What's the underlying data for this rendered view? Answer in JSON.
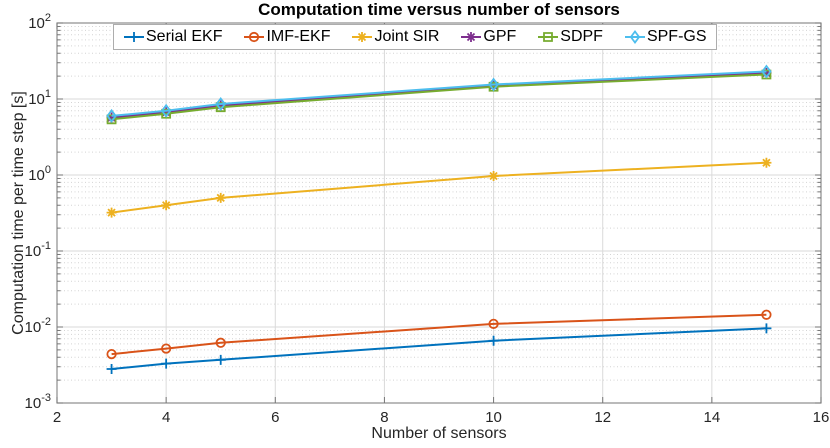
{
  "figure": {
    "title": "Computation time versus number of sensors",
    "xlabel": "Number of sensors",
    "ylabel": "Computation time per time step [s]"
  },
  "chart_data": {
    "type": "line",
    "x_scale": "linear",
    "y_scale": "log",
    "x": [
      3,
      4,
      5,
      10,
      15
    ],
    "series": [
      {
        "name": "Serial EKF",
        "color": "#0072BD",
        "marker": "plus",
        "values": [
          0.0028,
          0.0033,
          0.0037,
          0.0066,
          0.0096
        ]
      },
      {
        "name": "IMF-EKF",
        "color": "#D95319",
        "marker": "circle",
        "values": [
          0.0044,
          0.0052,
          0.0062,
          0.011,
          0.0145
        ]
      },
      {
        "name": "Joint SIR",
        "color": "#EDB120",
        "marker": "asterisk",
        "values": [
          0.32,
          0.4,
          0.5,
          0.97,
          1.45
        ]
      },
      {
        "name": "GPF",
        "color": "#7E2F8E",
        "marker": "asterisk",
        "values": [
          5.7,
          6.7,
          8.2,
          15.0,
          22.0
        ]
      },
      {
        "name": "SDPF",
        "color": "#77AC30",
        "marker": "square",
        "values": [
          5.4,
          6.4,
          7.8,
          14.5,
          21.0
        ]
      },
      {
        "name": "SPF-GS",
        "color": "#4DBEEE",
        "marker": "diamond",
        "values": [
          6.0,
          7.0,
          8.6,
          15.5,
          23.0
        ]
      }
    ],
    "title": "Computation time versus number of sensors",
    "xlabel": "Number of sensors",
    "ylabel": "Computation time per time step [s]",
    "xlim": [
      2,
      16
    ],
    "xticks": [
      2,
      4,
      6,
      8,
      10,
      12,
      14,
      16
    ],
    "ylim_exp": [
      -3,
      2
    ],
    "ytick_exponents": [
      2,
      1,
      0,
      -1,
      -2,
      -3
    ],
    "ytick_base": "10",
    "grid": true,
    "minor_grid": true,
    "legend_position": "north-horizontal"
  },
  "style": {
    "frame_color": "#8c8c8c",
    "major_grid_color": "#dadada",
    "minor_grid_color": "#d4d4d4",
    "tick_color": "#767676",
    "tick_label_color": "#262626",
    "background": "#ffffff"
  }
}
